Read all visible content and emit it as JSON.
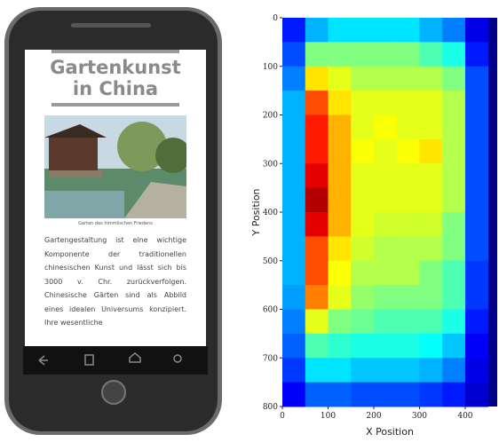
{
  "phone": {
    "title": [
      "Gartenkunst",
      "in China"
    ],
    "caption": "Garten des himmlischen Friedens",
    "paragraph": "Gartengestaltung ist eine wichtige Komponente der traditionellen chinesischen Kunst und lässt sich bis 3000 v. Chr. zurückverfolgen. Chinesische Gärten sind als Abbild eines idealen Universums konzipiert. Ihre wesentliche"
  },
  "chart_data": {
    "type": "heatmap",
    "xlabel": "X Position",
    "ylabel": "Y Position",
    "x": [
      25,
      75,
      125,
      175,
      225,
      275,
      325,
      375,
      425
    ],
    "y": [
      25,
      75,
      125,
      175,
      225,
      275,
      325,
      375,
      425,
      475,
      525,
      575,
      625,
      675,
      725,
      775
    ],
    "z": [
      [
        0.15,
        0.3,
        0.35,
        0.35,
        0.35,
        0.35,
        0.3,
        0.25,
        0.1
      ],
      [
        0.2,
        0.5,
        0.5,
        0.5,
        0.5,
        0.5,
        0.45,
        0.4,
        0.15
      ],
      [
        0.25,
        0.65,
        0.6,
        0.55,
        0.55,
        0.55,
        0.55,
        0.5,
        0.2
      ],
      [
        0.3,
        0.8,
        0.65,
        0.6,
        0.6,
        0.6,
        0.6,
        0.55,
        0.2
      ],
      [
        0.3,
        0.85,
        0.7,
        0.6,
        0.62,
        0.6,
        0.6,
        0.55,
        0.2
      ],
      [
        0.3,
        0.85,
        0.7,
        0.62,
        0.6,
        0.62,
        0.65,
        0.55,
        0.2
      ],
      [
        0.3,
        0.9,
        0.7,
        0.6,
        0.6,
        0.6,
        0.6,
        0.55,
        0.2
      ],
      [
        0.3,
        0.95,
        0.7,
        0.6,
        0.6,
        0.6,
        0.6,
        0.55,
        0.2
      ],
      [
        0.3,
        0.9,
        0.7,
        0.6,
        0.58,
        0.58,
        0.58,
        0.5,
        0.2
      ],
      [
        0.3,
        0.8,
        0.65,
        0.58,
        0.55,
        0.55,
        0.55,
        0.5,
        0.2
      ],
      [
        0.3,
        0.8,
        0.62,
        0.55,
        0.55,
        0.55,
        0.5,
        0.45,
        0.18
      ],
      [
        0.28,
        0.75,
        0.6,
        0.52,
        0.5,
        0.5,
        0.5,
        0.45,
        0.18
      ],
      [
        0.25,
        0.6,
        0.5,
        0.48,
        0.45,
        0.45,
        0.45,
        0.4,
        0.15
      ],
      [
        0.22,
        0.45,
        0.42,
        0.4,
        0.4,
        0.4,
        0.38,
        0.32,
        0.12
      ],
      [
        0.18,
        0.35,
        0.35,
        0.32,
        0.32,
        0.32,
        0.3,
        0.25,
        0.1
      ],
      [
        0.12,
        0.22,
        0.22,
        0.2,
        0.2,
        0.2,
        0.18,
        0.15,
        0.08
      ]
    ],
    "xlim": [
      0,
      470
    ],
    "ylim": [
      0,
      800
    ],
    "xticks": [
      0,
      100,
      200,
      300,
      400
    ],
    "yticks": [
      0,
      100,
      200,
      300,
      400,
      500,
      600,
      700,
      800
    ],
    "y_inverted": true
  }
}
